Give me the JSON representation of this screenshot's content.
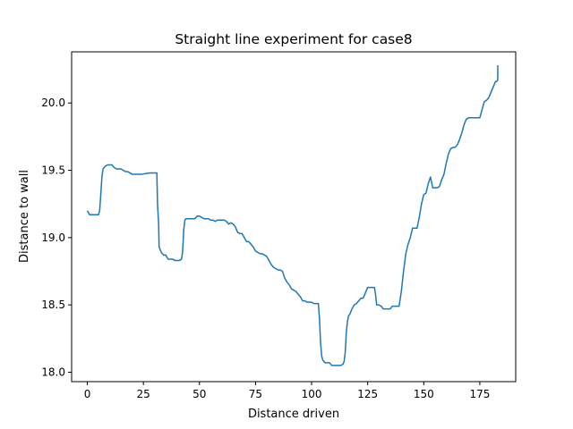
{
  "chart_data": {
    "type": "line",
    "title": "Straight line experiment for case8",
    "xlabel": "Distance driven",
    "ylabel": "Distance to wall",
    "xlim": [
      -7,
      191
    ],
    "ylim": [
      17.93,
      20.38
    ],
    "x_ticks": [
      0,
      25,
      50,
      75,
      100,
      125,
      150,
      175
    ],
    "x_tick_labels": [
      "0",
      "25",
      "50",
      "75",
      "100",
      "125",
      "150",
      "175"
    ],
    "y_ticks": [
      18.0,
      18.5,
      19.0,
      19.5,
      20.0
    ],
    "y_tick_labels": [
      "18.0",
      "18.5",
      "19.0",
      "19.5",
      "20.0"
    ],
    "grid": false,
    "series": [
      {
        "color": "#1f77b4",
        "points": [
          [
            0,
            19.2
          ],
          [
            1,
            19.17
          ],
          [
            2,
            19.17
          ],
          [
            3,
            19.17
          ],
          [
            4,
            19.17
          ],
          [
            5,
            19.17
          ],
          [
            5.5,
            19.2
          ],
          [
            6,
            19.32
          ],
          [
            6.5,
            19.45
          ],
          [
            7,
            19.51
          ],
          [
            8,
            19.53
          ],
          [
            9,
            19.54
          ],
          [
            10,
            19.54
          ],
          [
            11,
            19.54
          ],
          [
            12,
            19.52
          ],
          [
            13,
            19.51
          ],
          [
            14,
            19.51
          ],
          [
            15,
            19.51
          ],
          [
            16,
            19.5
          ],
          [
            17,
            19.49
          ],
          [
            18,
            19.49
          ],
          [
            19,
            19.48
          ],
          [
            20,
            19.47
          ],
          [
            21,
            19.47
          ],
          [
            22,
            19.47
          ],
          [
            24,
            19.47
          ],
          [
            26,
            19.475
          ],
          [
            28,
            19.48
          ],
          [
            30,
            19.48
          ],
          [
            31,
            19.48
          ],
          [
            31.3,
            19.25
          ],
          [
            31.8,
            19.1
          ],
          [
            32,
            18.93
          ],
          [
            33,
            18.89
          ],
          [
            34,
            18.87
          ],
          [
            35,
            18.87
          ],
          [
            36,
            18.84
          ],
          [
            37,
            18.84
          ],
          [
            38,
            18.84
          ],
          [
            39,
            18.83
          ],
          [
            40,
            18.83
          ],
          [
            41,
            18.83
          ],
          [
            42,
            18.84
          ],
          [
            42.5,
            18.9
          ],
          [
            43,
            19.06
          ],
          [
            43.5,
            19.13
          ],
          [
            44,
            19.14
          ],
          [
            45,
            19.14
          ],
          [
            46,
            19.14
          ],
          [
            47,
            19.14
          ],
          [
            48,
            19.14
          ],
          [
            49,
            19.16
          ],
          [
            50,
            19.16
          ],
          [
            51,
            19.15
          ],
          [
            52,
            19.14
          ],
          [
            53,
            19.14
          ],
          [
            54,
            19.14
          ],
          [
            55,
            19.13
          ],
          [
            56,
            19.13
          ],
          [
            57,
            19.12
          ],
          [
            58,
            19.13
          ],
          [
            59,
            19.13
          ],
          [
            60,
            19.13
          ],
          [
            61,
            19.13
          ],
          [
            62,
            19.12
          ],
          [
            63,
            19.1
          ],
          [
            64,
            19.11
          ],
          [
            65,
            19.1
          ],
          [
            66,
            19.08
          ],
          [
            67,
            19.04
          ],
          [
            68,
            19.03
          ],
          [
            69,
            19.03
          ],
          [
            70,
            19.0
          ],
          [
            71,
            18.97
          ],
          [
            72,
            18.97
          ],
          [
            73,
            18.95
          ],
          [
            74,
            18.93
          ],
          [
            75,
            18.9
          ],
          [
            76,
            18.89
          ],
          [
            77,
            18.88
          ],
          [
            78,
            18.88
          ],
          [
            79,
            18.87
          ],
          [
            80,
            18.86
          ],
          [
            81,
            18.83
          ],
          [
            82,
            18.8
          ],
          [
            83,
            18.78
          ],
          [
            84,
            18.77
          ],
          [
            85,
            18.76
          ],
          [
            86,
            18.76
          ],
          [
            87,
            18.75
          ],
          [
            88,
            18.7
          ],
          [
            89,
            18.67
          ],
          [
            90,
            18.65
          ],
          [
            91,
            18.62
          ],
          [
            92,
            18.61
          ],
          [
            93,
            18.6
          ],
          [
            94,
            18.58
          ],
          [
            95,
            18.56
          ],
          [
            96,
            18.53
          ],
          [
            97,
            18.53
          ],
          [
            98,
            18.52
          ],
          [
            99,
            18.52
          ],
          [
            100,
            18.52
          ],
          [
            101,
            18.51
          ],
          [
            102,
            18.51
          ],
          [
            103,
            18.51
          ],
          [
            103.5,
            18.4
          ],
          [
            104,
            18.22
          ],
          [
            104.5,
            18.12
          ],
          [
            105,
            18.09
          ],
          [
            106,
            18.07
          ],
          [
            107,
            18.07
          ],
          [
            108,
            18.07
          ],
          [
            109,
            18.05
          ],
          [
            110,
            18.05
          ],
          [
            111,
            18.05
          ],
          [
            112,
            18.05
          ],
          [
            113,
            18.05
          ],
          [
            114,
            18.06
          ],
          [
            114.5,
            18.08
          ],
          [
            115,
            18.15
          ],
          [
            115.5,
            18.3
          ],
          [
            116,
            18.38
          ],
          [
            116.5,
            18.42
          ],
          [
            117,
            18.43
          ],
          [
            118,
            18.47
          ],
          [
            119,
            18.5
          ],
          [
            120,
            18.51
          ],
          [
            121,
            18.53
          ],
          [
            122,
            18.55
          ],
          [
            123,
            18.55
          ],
          [
            124,
            18.59
          ],
          [
            125,
            18.63
          ],
          [
            126,
            18.63
          ],
          [
            127,
            18.63
          ],
          [
            128,
            18.63
          ],
          [
            128.5,
            18.58
          ],
          [
            129,
            18.5
          ],
          [
            130,
            18.5
          ],
          [
            131,
            18.49
          ],
          [
            132,
            18.47
          ],
          [
            133,
            18.47
          ],
          [
            134,
            18.47
          ],
          [
            135,
            18.47
          ],
          [
            136,
            18.49
          ],
          [
            137,
            18.49
          ],
          [
            138,
            18.49
          ],
          [
            139,
            18.49
          ],
          [
            140,
            18.6
          ],
          [
            141,
            18.75
          ],
          [
            142,
            18.88
          ],
          [
            143,
            18.95
          ],
          [
            144,
            19.0
          ],
          [
            145,
            19.07
          ],
          [
            146,
            19.07
          ],
          [
            147,
            19.07
          ],
          [
            148,
            19.15
          ],
          [
            149,
            19.25
          ],
          [
            150,
            19.32
          ],
          [
            151,
            19.33
          ],
          [
            152,
            19.4
          ],
          [
            153,
            19.45
          ],
          [
            154,
            19.37
          ],
          [
            155,
            19.37
          ],
          [
            156,
            19.37
          ],
          [
            157,
            19.38
          ],
          [
            158,
            19.43
          ],
          [
            159,
            19.47
          ],
          [
            160,
            19.55
          ],
          [
            161,
            19.62
          ],
          [
            162,
            19.66
          ],
          [
            163,
            19.67
          ],
          [
            164,
            19.67
          ],
          [
            165,
            19.69
          ],
          [
            166,
            19.73
          ],
          [
            167,
            19.78
          ],
          [
            168,
            19.84
          ],
          [
            169,
            19.88
          ],
          [
            170,
            19.89
          ],
          [
            171,
            19.89
          ],
          [
            172,
            19.89
          ],
          [
            173,
            19.89
          ],
          [
            174,
            19.89
          ],
          [
            175,
            19.89
          ],
          [
            176,
            19.95
          ],
          [
            177,
            20.01
          ],
          [
            178,
            20.02
          ],
          [
            179,
            20.04
          ],
          [
            180,
            20.08
          ],
          [
            181,
            20.12
          ],
          [
            182,
            20.16
          ],
          [
            182.5,
            20.16
          ],
          [
            183,
            20.17
          ],
          [
            183,
            20.28
          ]
        ]
      }
    ]
  }
}
